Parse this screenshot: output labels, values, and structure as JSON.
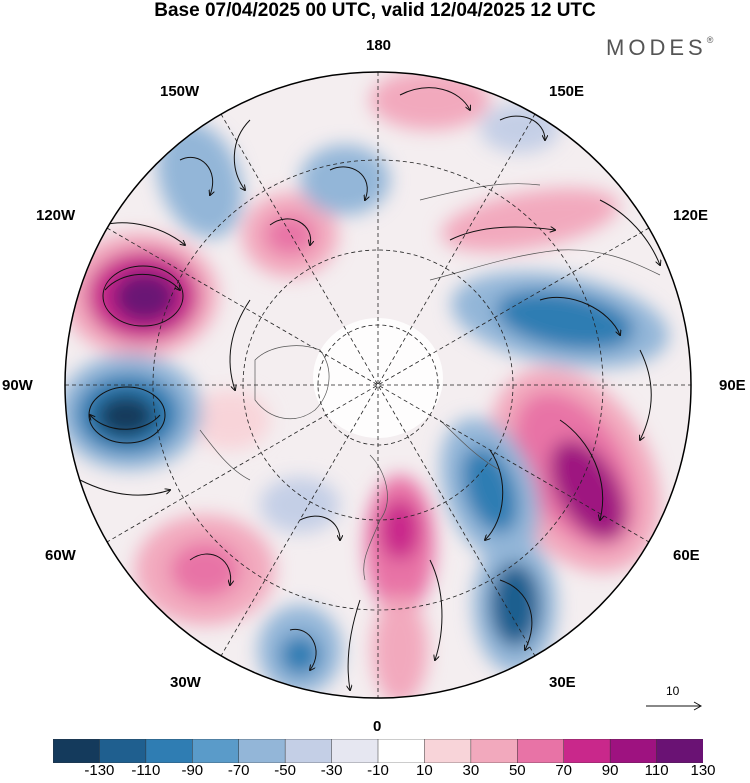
{
  "title": "Base 07/04/2025 00 UTC, valid 12/04/2025 12 UTC",
  "logo": "MODES",
  "logo_mark": "®",
  "longitude_labels": {
    "n180": "180",
    "e150": "150E",
    "e120": "120E",
    "e90": "90E",
    "e60": "60E",
    "e30": "30E",
    "zero": "0",
    "w30": "30W",
    "w60": "60W",
    "w90": "90W",
    "w120": "120W",
    "w150": "150W"
  },
  "reference_vector": {
    "label": "10"
  },
  "colorbar": {
    "tick_labels": [
      "-130",
      "-110",
      "-90",
      "-70",
      "-50",
      "-30",
      "-10",
      "10",
      "30",
      "50",
      "70",
      "90",
      "110",
      "130"
    ],
    "colors": [
      "#143a5c",
      "#1f5f8f",
      "#2f7db3",
      "#5a9bc9",
      "#93b6d8",
      "#c4cfe6",
      "#e6e7f1",
      "#ffffff",
      "#f8d4d9",
      "#f2a9bd",
      "#e873a6",
      "#c9288b",
      "#9e1280",
      "#6a1274"
    ]
  }
}
